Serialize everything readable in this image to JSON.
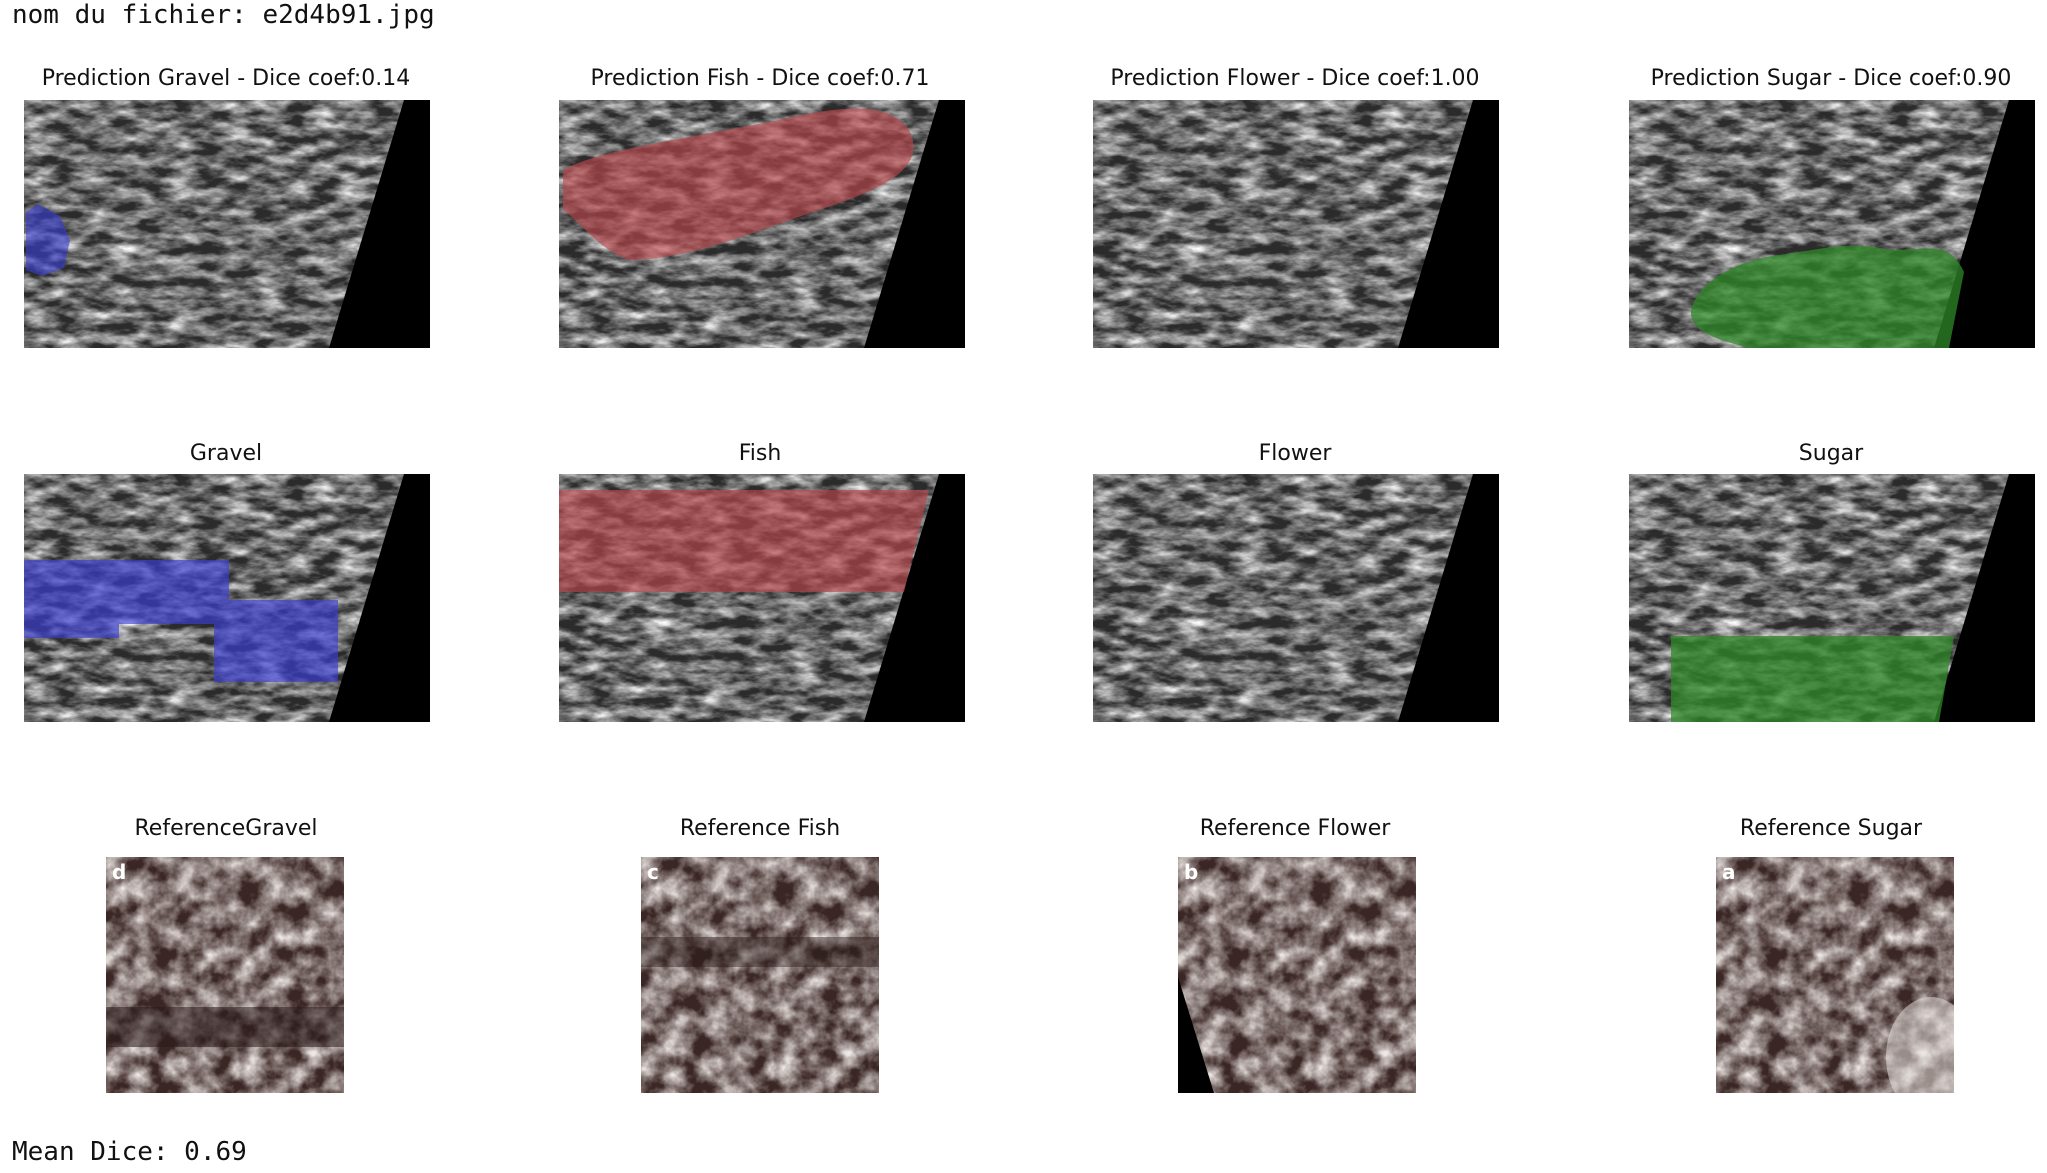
{
  "header": {
    "filename_line": "nom du fichier: e2d4b91.jpg"
  },
  "prediction_row": [
    {
      "label": "Prediction Gravel - Dice coef:0.14",
      "class": "Gravel",
      "dice": 0.14,
      "overlay_color": "#3b3fd6"
    },
    {
      "label": "Prediction Fish - Dice coef:0.71",
      "class": "Fish",
      "dice": 0.71,
      "overlay_color": "#b8454a"
    },
    {
      "label": "Prediction Flower - Dice coef:1.00",
      "class": "Flower",
      "dice": 1.0,
      "overlay_color": ""
    },
    {
      "label": "Prediction Sugar - Dice coef:0.90",
      "class": "Sugar",
      "dice": 0.9,
      "overlay_color": "#2f8a2a"
    }
  ],
  "ground_truth_row": [
    {
      "label": "Gravel",
      "overlay_color": "#3b3fd6"
    },
    {
      "label": "Fish",
      "overlay_color": "#b8454a"
    },
    {
      "label": "Flower",
      "overlay_color": ""
    },
    {
      "label": "Sugar",
      "overlay_color": "#2f8a2a"
    }
  ],
  "reference_row": [
    {
      "label": "ReferenceGravel",
      "corner_letter": "d"
    },
    {
      "label": "Reference Fish",
      "corner_letter": "c"
    },
    {
      "label": "Reference Flower",
      "corner_letter": "b"
    },
    {
      "label": "Reference Sugar",
      "corner_letter": "a"
    }
  ],
  "footer": {
    "mean_dice_line": "Mean Dice: 0.69"
  }
}
